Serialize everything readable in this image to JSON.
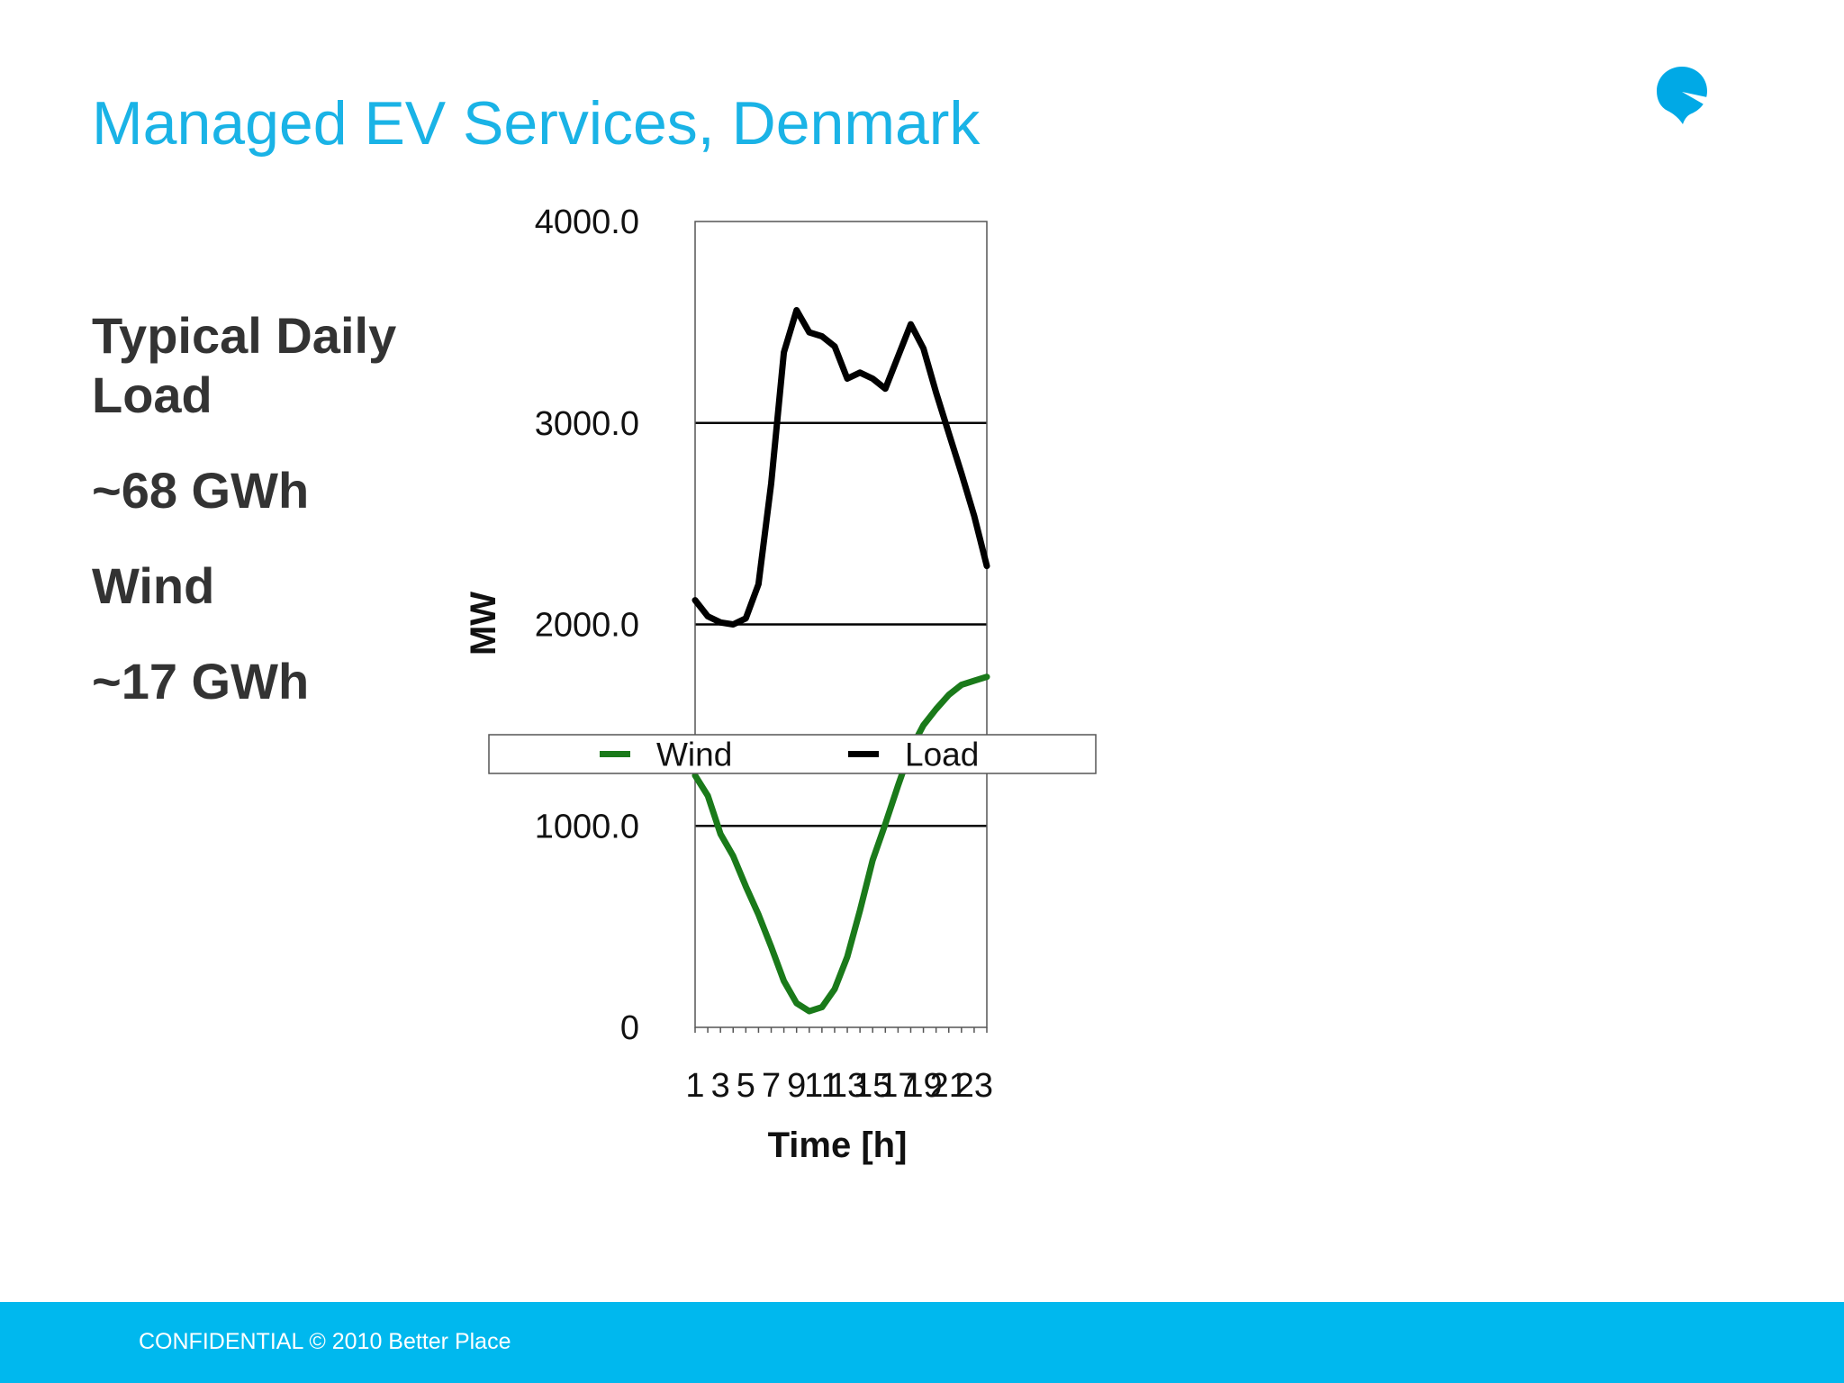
{
  "slide": {
    "title": "Managed EV Services, Denmark",
    "stats": {
      "line1": "Typical Daily Load",
      "line2": "~68 GWh",
      "line3": "Wind",
      "line4": "~17 GWh"
    },
    "footer": "CONFIDENTIAL © 2010 Better Place",
    "colors": {
      "title": "#1ab3e6",
      "footer_bg": "#00b8ee",
      "logo": "#00a9e6"
    },
    "logo_icon": "better-place-logo-icon"
  },
  "chart_data": {
    "type": "line",
    "xlabel": "Time [h]",
    "ylabel": "MW",
    "ylim": [
      0,
      4000
    ],
    "yticks": [
      "0",
      "1000.0",
      "2000.0",
      "3000.0",
      "4000.0"
    ],
    "ytick_values": [
      0,
      1000,
      2000,
      3000,
      4000
    ],
    "x": [
      1,
      2,
      3,
      4,
      5,
      6,
      7,
      8,
      9,
      10,
      11,
      12,
      13,
      14,
      15,
      16,
      17,
      18,
      19,
      20,
      21,
      22,
      23,
      24
    ],
    "xtick_labels": [
      "1",
      "3",
      "5",
      "7",
      "9",
      "11",
      "13",
      "15",
      "17",
      "19",
      "21",
      "23"
    ],
    "legend_position": "center",
    "grid": true,
    "series": [
      {
        "name": "Wind",
        "color": "#1a7a1a",
        "values": [
          1250,
          1150,
          960,
          850,
          700,
          560,
          400,
          230,
          120,
          80,
          100,
          190,
          350,
          580,
          830,
          1010,
          1200,
          1380,
          1500,
          1580,
          1650,
          1700,
          1720,
          1740
        ]
      },
      {
        "name": "Load",
        "color": "#000000",
        "values": [
          2120,
          2040,
          2010,
          2000,
          2030,
          2200,
          2700,
          3350,
          3560,
          3450,
          3430,
          3380,
          3220,
          3250,
          3220,
          3170,
          3330,
          3490,
          3370,
          3150,
          2950,
          2750,
          2540,
          2290
        ]
      }
    ]
  }
}
